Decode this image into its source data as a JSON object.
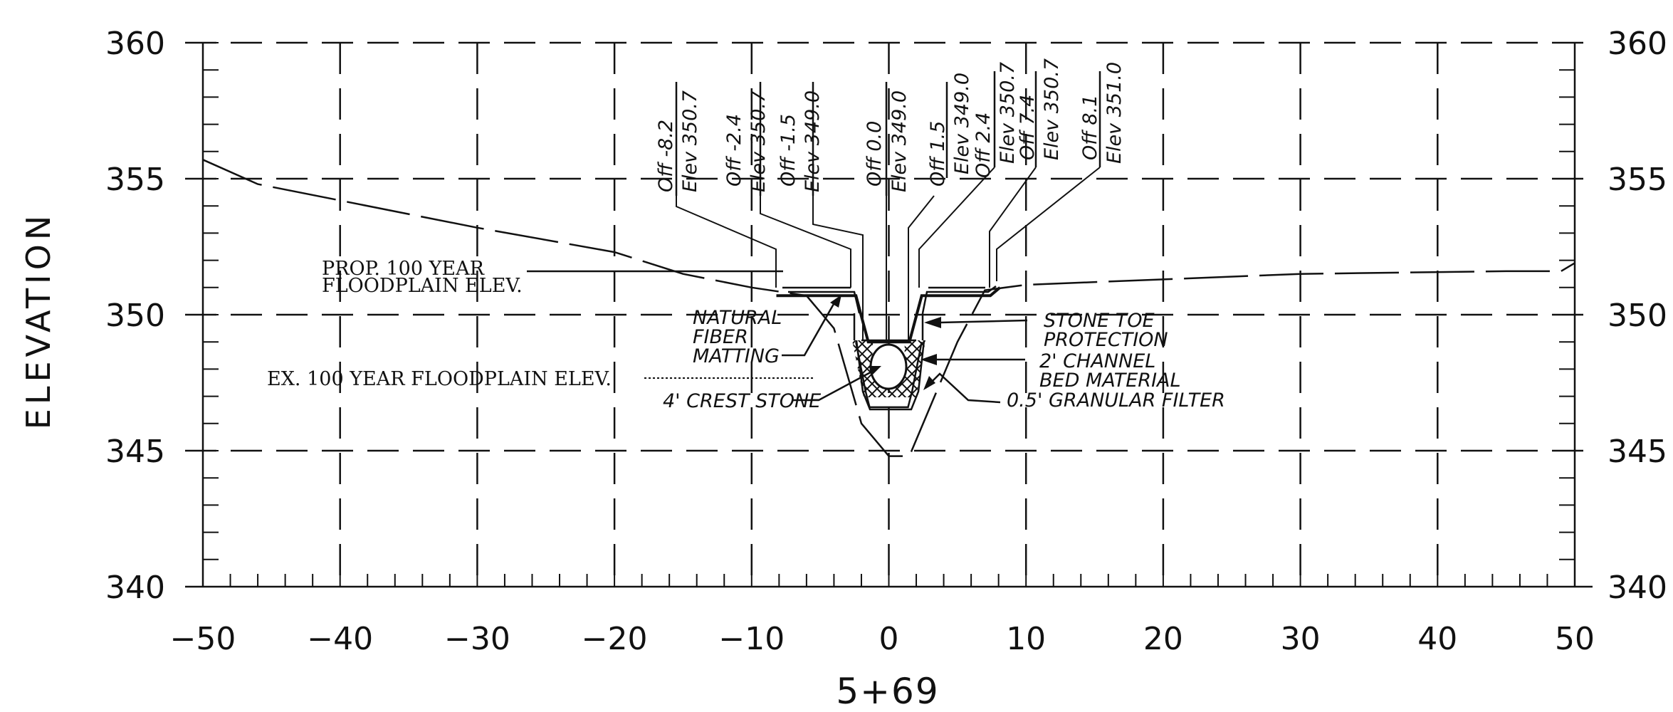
{
  "chart_data": {
    "type": "line",
    "station": "5+69",
    "ylabel": "ELEVATION",
    "xlim": [
      -50,
      50
    ],
    "ylim": [
      340,
      360
    ],
    "x_ticks": [
      "-50",
      "-40",
      "-30",
      "-20",
      "-10",
      "0",
      "10",
      "20",
      "30",
      "40",
      "50"
    ],
    "y_ticks": [
      "340",
      "345",
      "350",
      "355",
      "360"
    ],
    "grid": true,
    "series": [
      {
        "role": "existing-ground",
        "points": [
          [
            -50,
            355.7
          ],
          [
            -46,
            354.8
          ],
          [
            -30,
            353.2
          ],
          [
            -20,
            352.3
          ],
          [
            -15,
            351.5
          ],
          [
            -10,
            351.0
          ],
          [
            -6,
            350.7
          ],
          [
            -4,
            349.5
          ],
          [
            -2,
            346.0
          ],
          [
            0,
            344.8
          ],
          [
            1.5,
            344.8
          ],
          [
            5,
            349.0
          ],
          [
            7,
            350.9
          ],
          [
            10,
            351.1
          ],
          [
            30,
            351.5
          ],
          [
            45,
            351.6
          ],
          [
            49,
            351.6
          ],
          [
            50,
            351.9
          ]
        ]
      },
      {
        "role": "proposed-section",
        "points": [
          [
            -8.2,
            350.7
          ],
          [
            -2.4,
            350.7
          ],
          [
            -1.5,
            349.0
          ],
          [
            1.5,
            349.0
          ],
          [
            2.4,
            350.7
          ],
          [
            7.4,
            350.7
          ],
          [
            8.1,
            351.0
          ]
        ]
      },
      {
        "role": "channel-bottom",
        "points": [
          [
            -2.4,
            349.0
          ],
          [
            -1.7,
            347.2
          ],
          [
            -1.4,
            346.6
          ],
          [
            1.4,
            346.6
          ],
          [
            1.7,
            347.2
          ],
          [
            2.4,
            349.0
          ]
        ]
      }
    ],
    "offset_labels": [
      {
        "off": "Off -8.2",
        "elev": "Elev 350.7"
      },
      {
        "off": "Off -2.4",
        "elev": "Elev 350.7"
      },
      {
        "off": "Off -1.5",
        "elev": "Elev 349.0"
      },
      {
        "off": "Off 0.0",
        "elev": "Elev 349.0"
      },
      {
        "off": "Off 1.5",
        "elev": "Elev 349.0"
      },
      {
        "off": "Off 2.4",
        "elev": "Elev 350.7"
      },
      {
        "off": "Off 7.4",
        "elev": "Elev 350.7"
      },
      {
        "off": "Off 8.1",
        "elev": "Elev 351.0"
      }
    ],
    "annotations": {
      "prop_flood_1": "PROP. 100 YEAR",
      "prop_flood_2": "FLOODPLAIN ELEV.",
      "ex_flood": "EX. 100 YEAR FLOODPLAIN ELEV.",
      "natural_1": "NATURAL",
      "natural_2": "FIBER",
      "natural_3": "MATTING",
      "crest": "4' CREST STONE",
      "stone_1": "STONE TOE",
      "stone_2": "PROTECTION",
      "channel_1": "2' CHANNEL",
      "channel_2": "BED MATERIAL",
      "granular": "0.5' GRANULAR FILTER"
    }
  }
}
